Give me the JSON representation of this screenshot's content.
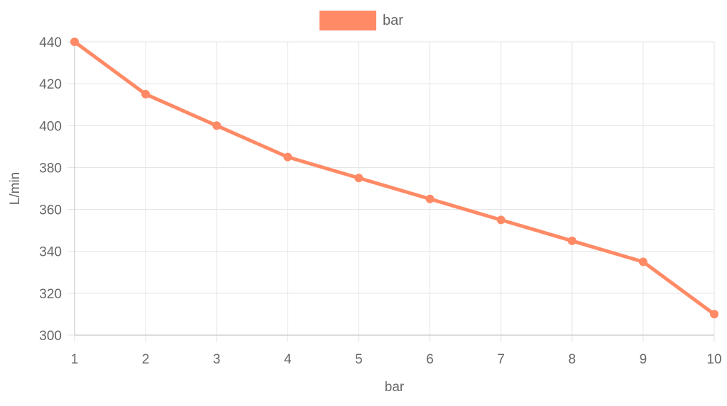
{
  "chart_data": {
    "type": "line",
    "x": [
      1,
      2,
      3,
      4,
      5,
      6,
      7,
      8,
      9,
      10
    ],
    "series": [
      {
        "name": "bar",
        "values": [
          440,
          415,
          400,
          385,
          375,
          365,
          355,
          345,
          335,
          310
        ],
        "color": "#ff8a65"
      }
    ],
    "xlabel": "bar",
    "ylabel": "L/min",
    "xlim": [
      1,
      10
    ],
    "ylim": [
      300,
      440
    ],
    "yticks": [
      300,
      320,
      340,
      360,
      380,
      400,
      420,
      440
    ],
    "xticks": [
      1,
      2,
      3,
      4,
      5,
      6,
      7,
      8,
      9,
      10
    ],
    "grid": true,
    "legend_position": "top-center"
  }
}
